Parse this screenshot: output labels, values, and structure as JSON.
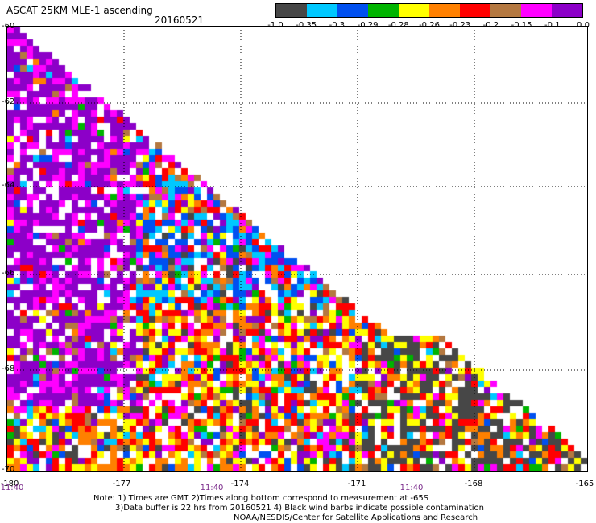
{
  "header": {
    "title": "ASCAT 25KM MLE-1 ascending",
    "date": "20160521"
  },
  "colorbar": {
    "colors": [
      "#474747",
      "#00c8ff",
      "#0050f0",
      "#00b400",
      "#ffff00",
      "#ff8000",
      "#ff0000",
      "#b47840",
      "#ff00ff",
      "#8c00c8"
    ],
    "labels": [
      "-1.0",
      "-0.35",
      "-0.3",
      "-0.29",
      "-0.28",
      "-0.26",
      "-0.23",
      "-0.2",
      "-0.15",
      "-0.1",
      "0.0"
    ]
  },
  "axes": {
    "lat_labels": [
      "-60",
      "-62",
      "-64",
      "-66",
      "-68",
      "-70"
    ],
    "lon_labels": [
      "-180",
      "-177",
      "-174",
      "-171",
      "-168",
      "-165"
    ],
    "time_labels": [
      "11:40",
      "11:40",
      "11:40"
    ]
  },
  "notes": [
    "Note: 1) Times are GMT 2)Times along bottom correspond to measurement at -65S",
    "3)Data buffer is 22 hrs from 20160521 4) Black wind barbs indicate possible contamination",
    "NOAA/NESDIS/Center for Satellite Applications and Research"
  ]
}
